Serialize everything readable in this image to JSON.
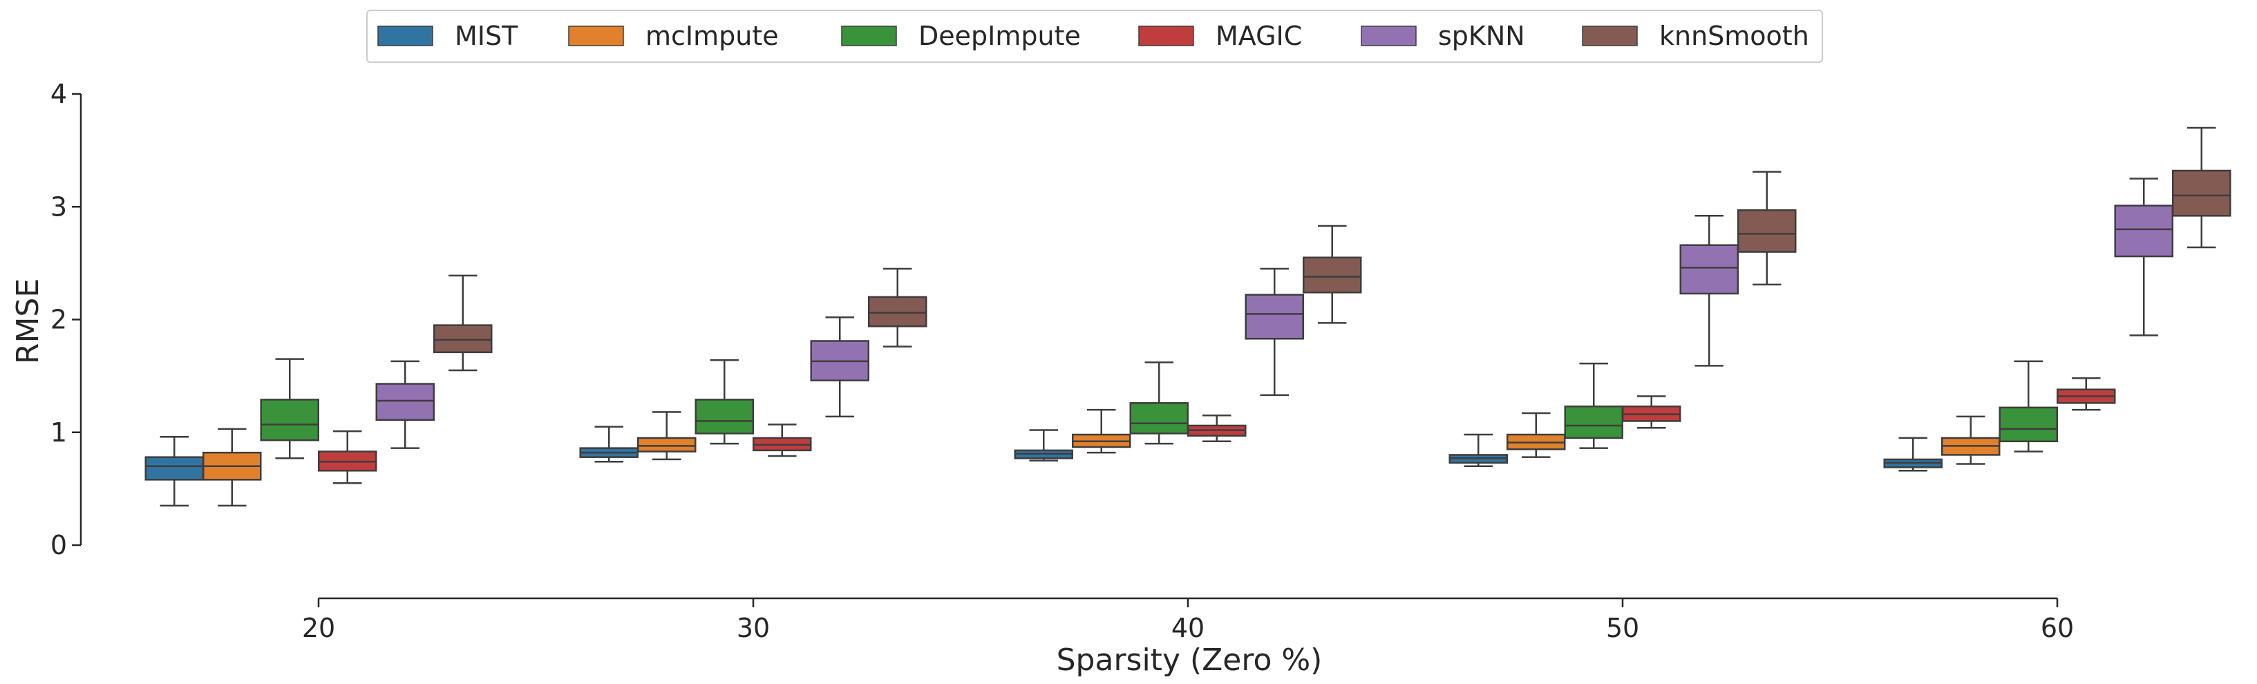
{
  "chart_data": {
    "type": "boxplot",
    "xlabel": "Sparsity (Zero %)",
    "ylabel": "RMSE",
    "ylim": [
      0,
      4
    ],
    "yticks": [
      0,
      1,
      2,
      3,
      4
    ],
    "categories": [
      "20",
      "30",
      "40",
      "50",
      "60"
    ],
    "legend": {
      "placement": "top-center"
    },
    "grid": false,
    "series": [
      {
        "name": "MIST",
        "color": "#3274a1",
        "boxes": [
          {
            "min": 0.35,
            "q1": 0.58,
            "median": 0.7,
            "q3": 0.78,
            "max": 0.96
          },
          {
            "min": 0.74,
            "q1": 0.78,
            "median": 0.82,
            "q3": 0.86,
            "max": 1.05
          },
          {
            "min": 0.75,
            "q1": 0.77,
            "median": 0.81,
            "q3": 0.84,
            "max": 1.02
          },
          {
            "min": 0.7,
            "q1": 0.73,
            "median": 0.77,
            "q3": 0.8,
            "max": 0.98
          },
          {
            "min": 0.66,
            "q1": 0.69,
            "median": 0.73,
            "q3": 0.76,
            "max": 0.95
          }
        ]
      },
      {
        "name": "mcImpute",
        "color": "#e1812c",
        "boxes": [
          {
            "min": 0.35,
            "q1": 0.58,
            "median": 0.7,
            "q3": 0.82,
            "max": 1.03
          },
          {
            "min": 0.76,
            "q1": 0.83,
            "median": 0.88,
            "q3": 0.95,
            "max": 1.18
          },
          {
            "min": 0.82,
            "q1": 0.87,
            "median": 0.92,
            "q3": 0.98,
            "max": 1.2
          },
          {
            "min": 0.78,
            "q1": 0.85,
            "median": 0.91,
            "q3": 0.98,
            "max": 1.17
          },
          {
            "min": 0.72,
            "q1": 0.8,
            "median": 0.88,
            "q3": 0.95,
            "max": 1.14
          }
        ]
      },
      {
        "name": "DeepImpute",
        "color": "#3a923a",
        "boxes": [
          {
            "min": 0.77,
            "q1": 0.93,
            "median": 1.07,
            "q3": 1.29,
            "max": 1.65
          },
          {
            "min": 0.9,
            "q1": 0.99,
            "median": 1.1,
            "q3": 1.29,
            "max": 1.64
          },
          {
            "min": 0.9,
            "q1": 0.99,
            "median": 1.08,
            "q3": 1.26,
            "max": 1.62
          },
          {
            "min": 0.86,
            "q1": 0.95,
            "median": 1.06,
            "q3": 1.23,
            "max": 1.61
          },
          {
            "min": 0.83,
            "q1": 0.92,
            "median": 1.03,
            "q3": 1.22,
            "max": 1.63
          }
        ]
      },
      {
        "name": "MAGIC",
        "color": "#c03d3e",
        "boxes": [
          {
            "min": 0.55,
            "q1": 0.66,
            "median": 0.74,
            "q3": 0.83,
            "max": 1.01
          },
          {
            "min": 0.79,
            "q1": 0.84,
            "median": 0.89,
            "q3": 0.95,
            "max": 1.07
          },
          {
            "min": 0.92,
            "q1": 0.97,
            "median": 1.02,
            "q3": 1.06,
            "max": 1.15
          },
          {
            "min": 1.04,
            "q1": 1.1,
            "median": 1.16,
            "q3": 1.23,
            "max": 1.32
          },
          {
            "min": 1.2,
            "q1": 1.26,
            "median": 1.32,
            "q3": 1.38,
            "max": 1.48
          }
        ]
      },
      {
        "name": "spKNN",
        "color": "#9372b2",
        "boxes": [
          {
            "min": 0.86,
            "q1": 1.11,
            "median": 1.28,
            "q3": 1.43,
            "max": 1.63
          },
          {
            "min": 1.14,
            "q1": 1.46,
            "median": 1.63,
            "q3": 1.81,
            "max": 2.02
          },
          {
            "min": 1.33,
            "q1": 1.83,
            "median": 2.05,
            "q3": 2.22,
            "max": 2.45
          },
          {
            "min": 1.59,
            "q1": 2.23,
            "median": 2.46,
            "q3": 2.66,
            "max": 2.92
          },
          {
            "min": 1.86,
            "q1": 2.56,
            "median": 2.8,
            "q3": 3.01,
            "max": 3.25
          }
        ]
      },
      {
        "name": "knnSmooth",
        "color": "#845b53",
        "boxes": [
          {
            "min": 1.55,
            "q1": 1.71,
            "median": 1.82,
            "q3": 1.95,
            "max": 2.39
          },
          {
            "min": 1.76,
            "q1": 1.94,
            "median": 2.06,
            "q3": 2.2,
            "max": 2.45
          },
          {
            "min": 1.97,
            "q1": 2.24,
            "median": 2.38,
            "q3": 2.55,
            "max": 2.83
          },
          {
            "min": 2.31,
            "q1": 2.6,
            "median": 2.76,
            "q3": 2.97,
            "max": 3.31
          },
          {
            "min": 2.64,
            "q1": 2.92,
            "median": 3.1,
            "q3": 3.32,
            "max": 3.7
          }
        ]
      }
    ]
  }
}
